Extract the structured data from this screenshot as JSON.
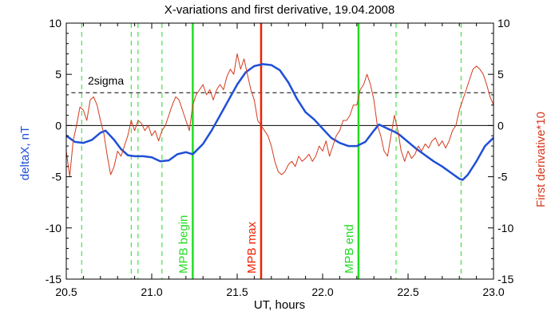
{
  "chart_data": {
    "type": "line",
    "title": "X-variations and first derivative, 19.04.2008",
    "xlabel": "UT, hours",
    "ylabel_left": "deltaX, nT",
    "ylabel_right": "First derivative*10",
    "xlim": [
      20.5,
      23.0
    ],
    "ylim_left": [
      -15,
      10
    ],
    "ylim_right": [
      -15,
      10
    ],
    "x_ticks": [
      "20.5",
      "21.0",
      "21.5",
      "22.0",
      "22.5",
      "23.0"
    ],
    "y_ticks_left": [
      "10",
      "5",
      "0",
      "-5",
      "-10",
      "-15"
    ],
    "y_ticks_right": [
      "10",
      "5",
      "0",
      "-5",
      "-10",
      "-15"
    ],
    "colors": {
      "deltaX": "#1f4fd6",
      "derivative": "#d43a1e",
      "mpb_edges": "#22dd22",
      "mpb_max": "#ee2200"
    },
    "sigma": {
      "label": "2sigma",
      "value": 3.2
    },
    "zero_line": 0,
    "vertical_markers": [
      {
        "x": 21.24,
        "label": "MPB begin",
        "color": "#22dd22"
      },
      {
        "x": 21.64,
        "label": "MPB max",
        "color": "#ee2200"
      },
      {
        "x": 22.21,
        "label": "MPB end",
        "color": "#22dd22"
      }
    ],
    "dashed_markers": [
      20.59,
      20.88,
      20.92,
      21.06,
      22.43,
      22.81
    ],
    "series": [
      {
        "key": "deltaX",
        "axis": "left",
        "points": [
          [
            20.5,
            -1.0
          ],
          [
            20.55,
            -1.6
          ],
          [
            20.6,
            -1.7
          ],
          [
            20.65,
            -1.4
          ],
          [
            20.7,
            -0.7
          ],
          [
            20.73,
            -0.5
          ],
          [
            20.78,
            -1.4
          ],
          [
            20.82,
            -2.3
          ],
          [
            20.86,
            -2.9
          ],
          [
            20.9,
            -3.0
          ],
          [
            20.95,
            -3.0
          ],
          [
            21.0,
            -3.1
          ],
          [
            21.05,
            -3.5
          ],
          [
            21.1,
            -3.4
          ],
          [
            21.15,
            -2.8
          ],
          [
            21.2,
            -2.6
          ],
          [
            21.24,
            -2.8
          ],
          [
            21.3,
            -1.8
          ],
          [
            21.35,
            -0.5
          ],
          [
            21.4,
            1.0
          ],
          [
            21.45,
            2.5
          ],
          [
            21.5,
            4.0
          ],
          [
            21.55,
            5.2
          ],
          [
            21.6,
            5.8
          ],
          [
            21.65,
            6.0
          ],
          [
            21.7,
            5.9
          ],
          [
            21.75,
            5.4
          ],
          [
            21.8,
            4.2
          ],
          [
            21.85,
            2.6
          ],
          [
            21.9,
            1.3
          ],
          [
            21.95,
            0.6
          ],
          [
            22.0,
            -0.3
          ],
          [
            22.05,
            -1.2
          ],
          [
            22.1,
            -1.7
          ],
          [
            22.15,
            -2.0
          ],
          [
            22.2,
            -2.0
          ],
          [
            22.25,
            -1.6
          ],
          [
            22.3,
            -0.5
          ],
          [
            22.33,
            0.1
          ],
          [
            22.38,
            -0.3
          ],
          [
            22.42,
            -0.6
          ],
          [
            22.45,
            -0.9
          ],
          [
            22.5,
            -1.6
          ],
          [
            22.55,
            -2.3
          ],
          [
            22.6,
            -2.9
          ],
          [
            22.65,
            -3.5
          ],
          [
            22.7,
            -4.0
          ],
          [
            22.75,
            -4.6
          ],
          [
            22.8,
            -5.2
          ],
          [
            22.82,
            -5.3
          ],
          [
            22.85,
            -4.8
          ],
          [
            22.9,
            -3.5
          ],
          [
            22.95,
            -2.0
          ],
          [
            23.0,
            -1.2
          ]
        ]
      },
      {
        "key": "derivative",
        "axis": "right",
        "points": [
          [
            20.5,
            -2.5
          ],
          [
            20.52,
            -5.0
          ],
          [
            20.54,
            -1.5
          ],
          [
            20.56,
            0.0
          ],
          [
            20.58,
            1.8
          ],
          [
            20.6,
            1.5
          ],
          [
            20.62,
            0.5
          ],
          [
            20.64,
            2.5
          ],
          [
            20.66,
            2.8
          ],
          [
            20.68,
            2.0
          ],
          [
            20.7,
            0.5
          ],
          [
            20.72,
            -0.8
          ],
          [
            20.74,
            -3.0
          ],
          [
            20.76,
            -4.8
          ],
          [
            20.78,
            -4.0
          ],
          [
            20.8,
            -2.5
          ],
          [
            20.82,
            -3.0
          ],
          [
            20.84,
            -2.0
          ],
          [
            20.86,
            -1.0
          ],
          [
            20.88,
            0.5
          ],
          [
            20.9,
            -0.5
          ],
          [
            20.92,
            0.5
          ],
          [
            20.94,
            0.2
          ],
          [
            20.96,
            -0.5
          ],
          [
            20.98,
            0.0
          ],
          [
            21.0,
            -1.0
          ],
          [
            21.02,
            -0.5
          ],
          [
            21.04,
            -1.5
          ],
          [
            21.06,
            -0.5
          ],
          [
            21.08,
            0.0
          ],
          [
            21.1,
            1.0
          ],
          [
            21.12,
            2.0
          ],
          [
            21.14,
            2.8
          ],
          [
            21.16,
            2.5
          ],
          [
            21.18,
            1.5
          ],
          [
            21.2,
            0.5
          ],
          [
            21.22,
            -0.5
          ],
          [
            21.24,
            2.0
          ],
          [
            21.26,
            3.0
          ],
          [
            21.28,
            3.5
          ],
          [
            21.3,
            4.0
          ],
          [
            21.32,
            3.0
          ],
          [
            21.34,
            3.5
          ],
          [
            21.36,
            2.5
          ],
          [
            21.38,
            3.5
          ],
          [
            21.4,
            4.0
          ],
          [
            21.42,
            3.5
          ],
          [
            21.44,
            4.8
          ],
          [
            21.46,
            5.5
          ],
          [
            21.48,
            5.0
          ],
          [
            21.5,
            7.0
          ],
          [
            21.52,
            5.5
          ],
          [
            21.54,
            6.5
          ],
          [
            21.56,
            5.0
          ],
          [
            21.58,
            3.5
          ],
          [
            21.6,
            2.5
          ],
          [
            21.62,
            0.5
          ],
          [
            21.64,
            0.0
          ],
          [
            21.66,
            -0.5
          ],
          [
            21.68,
            -1.0
          ],
          [
            21.7,
            -2.0
          ],
          [
            21.72,
            -3.5
          ],
          [
            21.74,
            -4.5
          ],
          [
            21.76,
            -4.8
          ],
          [
            21.78,
            -4.5
          ],
          [
            21.8,
            -3.8
          ],
          [
            21.82,
            -3.5
          ],
          [
            21.84,
            -4.0
          ],
          [
            21.86,
            -3.0
          ],
          [
            21.88,
            -3.5
          ],
          [
            21.9,
            -3.2
          ],
          [
            21.92,
            -2.8
          ],
          [
            21.94,
            -3.5
          ],
          [
            21.96,
            -3.0
          ],
          [
            21.98,
            -2.0
          ],
          [
            22.0,
            -2.5
          ],
          [
            22.02,
            -1.5
          ],
          [
            22.04,
            -3.0
          ],
          [
            22.06,
            -2.0
          ],
          [
            22.08,
            -1.0
          ],
          [
            22.1,
            -0.5
          ],
          [
            22.12,
            0.5
          ],
          [
            22.14,
            0.5
          ],
          [
            22.16,
            1.0
          ],
          [
            22.18,
            2.0
          ],
          [
            22.2,
            2.0
          ],
          [
            22.22,
            3.5
          ],
          [
            22.24,
            4.0
          ],
          [
            22.26,
            5.0
          ],
          [
            22.28,
            4.0
          ],
          [
            22.3,
            2.5
          ],
          [
            22.32,
            0.0
          ],
          [
            22.34,
            -1.0
          ],
          [
            22.36,
            -2.5
          ],
          [
            22.38,
            -3.0
          ],
          [
            22.4,
            -1.0
          ],
          [
            22.42,
            1.0
          ],
          [
            22.44,
            -0.5
          ],
          [
            22.46,
            -2.5
          ],
          [
            22.48,
            -3.5
          ],
          [
            22.5,
            -2.5
          ],
          [
            22.52,
            -3.2
          ],
          [
            22.54,
            -2.8
          ],
          [
            22.56,
            -2.0
          ],
          [
            22.58,
            -2.5
          ],
          [
            22.6,
            -1.8
          ],
          [
            22.62,
            -2.2
          ],
          [
            22.64,
            -1.5
          ],
          [
            22.66,
            -1.2
          ],
          [
            22.68,
            -2.0
          ],
          [
            22.7,
            -1.5
          ],
          [
            22.72,
            -2.2
          ],
          [
            22.74,
            -1.5
          ],
          [
            22.76,
            -0.5
          ],
          [
            22.78,
            0.0
          ],
          [
            22.8,
            1.5
          ],
          [
            22.82,
            2.5
          ],
          [
            22.84,
            3.5
          ],
          [
            22.86,
            4.5
          ],
          [
            22.88,
            5.5
          ],
          [
            22.9,
            5.8
          ],
          [
            22.92,
            5.5
          ],
          [
            22.94,
            5.0
          ],
          [
            22.96,
            4.0
          ],
          [
            22.98,
            2.8
          ],
          [
            23.0,
            2.0
          ]
        ]
      }
    ]
  }
}
